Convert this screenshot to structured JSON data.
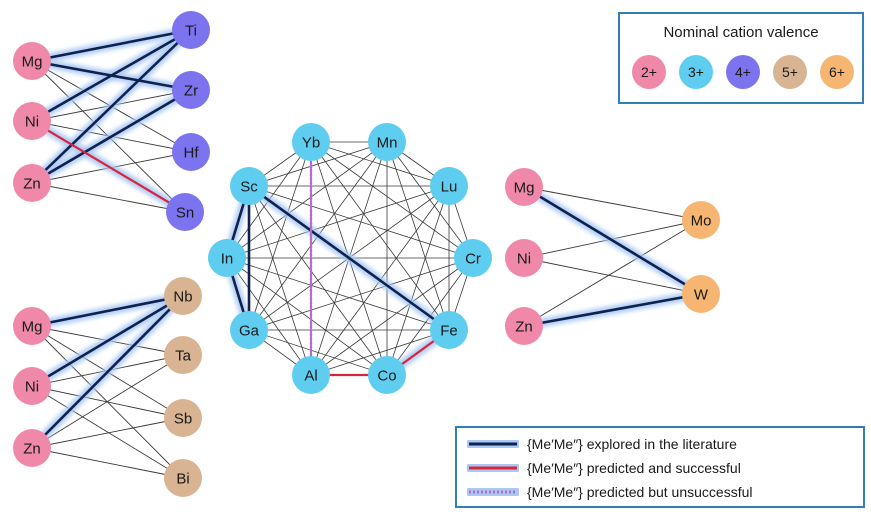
{
  "colors": {
    "2+": "#f088aa",
    "3+": "#5fcdef",
    "4+": "#7b74ee",
    "5+": "#d8b492",
    "6+": "#f6b672",
    "explored": "#0e2150",
    "explored_glow": "#a9c8f2",
    "success": "#d8243f",
    "unsuccessful": "#b56bc8"
  },
  "valence_legend": {
    "title": "Nominal cation valence",
    "items": [
      {
        "label": "2+",
        "color": "#f088aa"
      },
      {
        "label": "3+",
        "color": "#5fcdef"
      },
      {
        "label": "4+",
        "color": "#7b74ee"
      },
      {
        "label": "5+",
        "color": "#d8b492"
      },
      {
        "label": "6+",
        "color": "#f6b672"
      }
    ]
  },
  "edge_legend": [
    {
      "type": "explored",
      "label": "{Me′Me″} explored in the literature"
    },
    {
      "type": "success",
      "label": "{Me′Me″} predicted and successful"
    },
    {
      "type": "unsuccessful",
      "label": "{Me′Me″} predicted but unsuccessful"
    }
  ],
  "groups": {
    "top_left": {
      "left": [
        "Mg",
        "Ni",
        "Zn"
      ],
      "right": [
        "Ti",
        "Zr",
        "Hf",
        "Sn"
      ],
      "explored": [
        [
          "Mg",
          "Ti"
        ],
        [
          "Mg",
          "Zr"
        ],
        [
          "Ni",
          "Ti"
        ],
        [
          "Zn",
          "Ti"
        ],
        [
          "Zn",
          "Zr"
        ]
      ],
      "success": [
        [
          "Ni",
          "Sn"
        ]
      ]
    },
    "bottom_left": {
      "left": [
        "Mg",
        "Ni",
        "Zn"
      ],
      "right": [
        "Nb",
        "Ta",
        "Sb",
        "Bi"
      ],
      "explored": [
        [
          "Mg",
          "Nb"
        ],
        [
          "Ni",
          "Nb"
        ],
        [
          "Zn",
          "Nb"
        ]
      ]
    },
    "center": {
      "ring": [
        "Yb",
        "Mn",
        "Lu",
        "Cr",
        "Fe",
        "Co",
        "Al",
        "Ga",
        "In",
        "Sc"
      ],
      "explored": [
        [
          "Sc",
          "Fe"
        ],
        [
          "Sc",
          "In"
        ],
        [
          "Sc",
          "Ga"
        ],
        [
          "In",
          "Ga"
        ]
      ],
      "success": [
        [
          "Al",
          "Co"
        ],
        [
          "Co",
          "Fe"
        ]
      ],
      "unsuccessful": [
        [
          "Yb",
          "Al"
        ]
      ]
    },
    "right": {
      "left": [
        "Mg",
        "Ni",
        "Zn"
      ],
      "right": [
        "Mo",
        "W"
      ],
      "explored": [
        [
          "Mg",
          "W"
        ],
        [
          "Zn",
          "W"
        ]
      ]
    }
  }
}
